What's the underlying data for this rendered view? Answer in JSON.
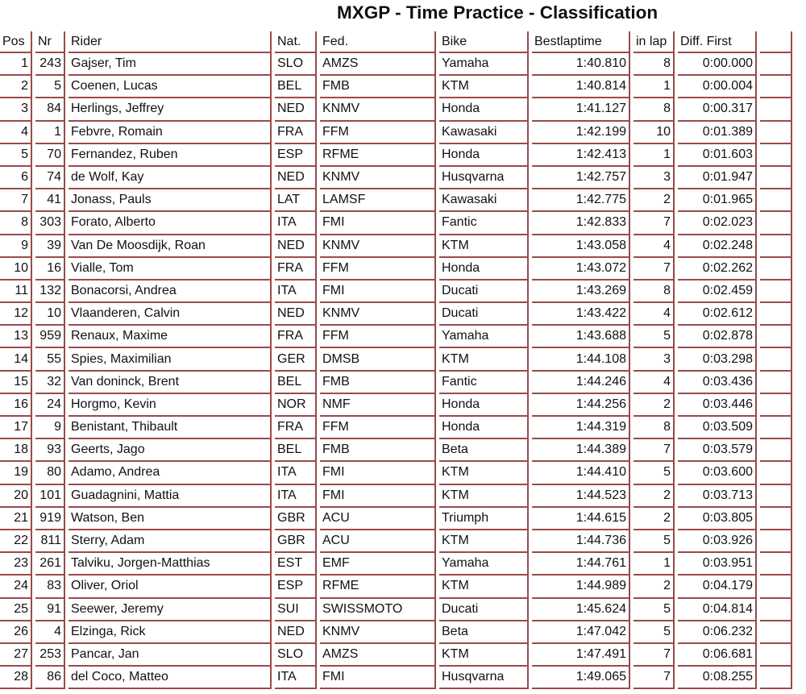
{
  "title": "MXGP - Time Practice - Classification",
  "columns": [
    "Pos",
    "Nr",
    "Rider",
    "Nat.",
    "Fed.",
    "Bike",
    "Bestlaptime",
    "in lap",
    "Diff. First",
    ""
  ],
  "colors": {
    "border": "#9a4a4a"
  },
  "rows": [
    [
      "1",
      "243",
      "Gajser, Tim",
      "SLO",
      "AMZS",
      "Yamaha",
      "1:40.810",
      "8",
      "0:00.000"
    ],
    [
      "2",
      "5",
      "Coenen, Lucas",
      "BEL",
      "FMB",
      "KTM",
      "1:40.814",
      "1",
      "0:00.004"
    ],
    [
      "3",
      "84",
      "Herlings, Jeffrey",
      "NED",
      "KNMV",
      "Honda",
      "1:41.127",
      "8",
      "0:00.317"
    ],
    [
      "4",
      "1",
      "Febvre, Romain",
      "FRA",
      "FFM",
      "Kawasaki",
      "1:42.199",
      "10",
      "0:01.389"
    ],
    [
      "5",
      "70",
      "Fernandez, Ruben",
      "ESP",
      "RFME",
      "Honda",
      "1:42.413",
      "1",
      "0:01.603"
    ],
    [
      "6",
      "74",
      "de Wolf, Kay",
      "NED",
      "KNMV",
      "Husqvarna",
      "1:42.757",
      "3",
      "0:01.947"
    ],
    [
      "7",
      "41",
      "Jonass, Pauls",
      "LAT",
      "LAMSF",
      "Kawasaki",
      "1:42.775",
      "2",
      "0:01.965"
    ],
    [
      "8",
      "303",
      "Forato, Alberto",
      "ITA",
      "FMI",
      "Fantic",
      "1:42.833",
      "7",
      "0:02.023"
    ],
    [
      "9",
      "39",
      "Van De Moosdijk, Roan",
      "NED",
      "KNMV",
      "KTM",
      "1:43.058",
      "4",
      "0:02.248"
    ],
    [
      "10",
      "16",
      "Vialle, Tom",
      "FRA",
      "FFM",
      "Honda",
      "1:43.072",
      "7",
      "0:02.262"
    ],
    [
      "11",
      "132",
      "Bonacorsi, Andrea",
      "ITA",
      "FMI",
      "Ducati",
      "1:43.269",
      "8",
      "0:02.459"
    ],
    [
      "12",
      "10",
      "Vlaanderen, Calvin",
      "NED",
      "KNMV",
      "Ducati",
      "1:43.422",
      "4",
      "0:02.612"
    ],
    [
      "13",
      "959",
      "Renaux, Maxime",
      "FRA",
      "FFM",
      "Yamaha",
      "1:43.688",
      "5",
      "0:02.878"
    ],
    [
      "14",
      "55",
      "Spies, Maximilian",
      "GER",
      "DMSB",
      "KTM",
      "1:44.108",
      "3",
      "0:03.298"
    ],
    [
      "15",
      "32",
      "Van doninck, Brent",
      "BEL",
      "FMB",
      "Fantic",
      "1:44.246",
      "4",
      "0:03.436"
    ],
    [
      "16",
      "24",
      "Horgmo, Kevin",
      "NOR",
      "NMF",
      "Honda",
      "1:44.256",
      "2",
      "0:03.446"
    ],
    [
      "17",
      "9",
      "Benistant, Thibault",
      "FRA",
      "FFM",
      "Honda",
      "1:44.319",
      "8",
      "0:03.509"
    ],
    [
      "18",
      "93",
      "Geerts, Jago",
      "BEL",
      "FMB",
      "Beta",
      "1:44.389",
      "7",
      "0:03.579"
    ],
    [
      "19",
      "80",
      "Adamo, Andrea",
      "ITA",
      "FMI",
      "KTM",
      "1:44.410",
      "5",
      "0:03.600"
    ],
    [
      "20",
      "101",
      "Guadagnini, Mattia",
      "ITA",
      "FMI",
      "KTM",
      "1:44.523",
      "2",
      "0:03.713"
    ],
    [
      "21",
      "919",
      "Watson, Ben",
      "GBR",
      "ACU",
      "Triumph",
      "1:44.615",
      "2",
      "0:03.805"
    ],
    [
      "22",
      "811",
      "Sterry, Adam",
      "GBR",
      "ACU",
      "KTM",
      "1:44.736",
      "5",
      "0:03.926"
    ],
    [
      "23",
      "261",
      "Talviku, Jorgen-Matthias",
      "EST",
      "EMF",
      "Yamaha",
      "1:44.761",
      "1",
      "0:03.951"
    ],
    [
      "24",
      "83",
      "Oliver, Oriol",
      "ESP",
      "RFME",
      "KTM",
      "1:44.989",
      "2",
      "0:04.179"
    ],
    [
      "25",
      "91",
      "Seewer, Jeremy",
      "SUI",
      "SWISSMOTO",
      "Ducati",
      "1:45.624",
      "5",
      "0:04.814"
    ],
    [
      "26",
      "4",
      "Elzinga, Rick",
      "NED",
      "KNMV",
      "Beta",
      "1:47.042",
      "5",
      "0:06.232"
    ],
    [
      "27",
      "253",
      "Pancar, Jan",
      "SLO",
      "AMZS",
      "KTM",
      "1:47.491",
      "7",
      "0:06.681"
    ],
    [
      "28",
      "86",
      "del Coco, Matteo",
      "ITA",
      "FMI",
      "Husqvarna",
      "1:49.065",
      "7",
      "0:08.255"
    ]
  ]
}
